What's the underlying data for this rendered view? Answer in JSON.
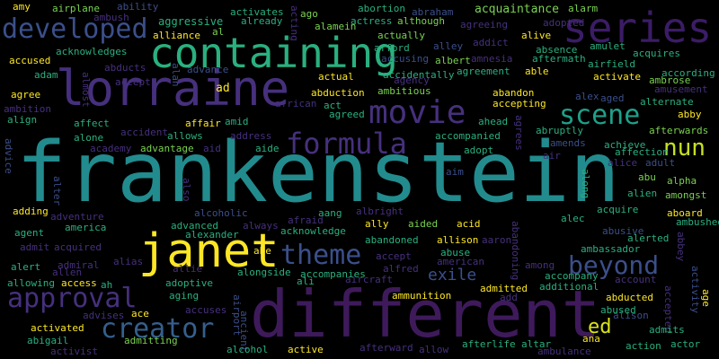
{
  "background": "#000000",
  "palette": {
    "purple": "#46307d",
    "indigo": "#3b4f8a",
    "teal": "#228b8d",
    "green": "#2ab07f",
    "lime": "#7ad151",
    "yellow": "#fde725",
    "slate": "#355f8d",
    "sea": "#1fa088"
  },
  "words": [
    {
      "text": "frankenstein",
      "color": "#228b8d"
    },
    {
      "text": "different",
      "color": "#3e1a5b"
    },
    {
      "text": "lorraine",
      "color": "#46307d"
    },
    {
      "text": "containing",
      "color": "#2ab07f"
    },
    {
      "text": "series",
      "color": "#3b1c66"
    },
    {
      "text": "janet",
      "color": "#fde725"
    },
    {
      "text": "developed",
      "color": "#3b4f8a"
    },
    {
      "text": "movie",
      "color": "#46307d"
    },
    {
      "text": "formula",
      "color": "#46307d"
    },
    {
      "text": "scene",
      "color": "#1fa088"
    },
    {
      "text": "beyond",
      "color": "#3b4f8a"
    },
    {
      "text": "approval",
      "color": "#46307d"
    },
    {
      "text": "theme",
      "color": "#3b4f8a"
    },
    {
      "text": "creator",
      "color": "#355f8d"
    },
    {
      "text": "nun",
      "color": "#c7e020"
    },
    {
      "text": "ed",
      "color": "#d8e219"
    },
    {
      "text": "exile",
      "color": "#3b4f8a"
    }
  ],
  "small_words": [
    "amy",
    "airplane",
    "ability",
    "activates",
    "acting",
    "ago",
    "abortion",
    "abraham",
    "acquaintance",
    "alarm",
    "ambush",
    "aggressive",
    "already",
    "alamein",
    "actress",
    "although",
    "adopted",
    "al",
    "agreeing",
    "alive",
    "alliance",
    "actually",
    "addict",
    "absence",
    "amulet",
    "acknowledges",
    "afford",
    "alley",
    "aftermath",
    "acquires",
    "accused",
    "abducts",
    "advance",
    "accusing",
    "albert",
    "amnesia",
    "airfield",
    "according",
    "adam",
    "almost",
    "accepts",
    "ad",
    "actual",
    "agency",
    "accidentally",
    "agreement",
    "able",
    "activate",
    "ambrose",
    "amusement",
    "alan",
    "abduction",
    "ambitious",
    "abandon",
    "alex",
    "aged",
    "agree",
    "ambition",
    "african",
    "act",
    "accepting",
    "alternate",
    "abby",
    "align",
    "affect",
    "affair",
    "amid",
    "agreed",
    "ahead",
    "agrees",
    "abruptly",
    "afterwards",
    "alone",
    "accident",
    "allows",
    "address",
    "accompanied",
    "amends",
    "achieve",
    "academy",
    "aide",
    "adopt",
    "affection",
    "alice",
    "adult",
    "advice",
    "advantage",
    "aid",
    "air",
    "abu",
    "alpha",
    "aim",
    "along",
    "alien",
    "amongst",
    "alter",
    "also",
    "aboard",
    "adding",
    "albright",
    "acid",
    "acquire",
    "ambushed",
    "adventure",
    "alcoholic",
    "aang",
    "ally",
    "aided",
    "alec",
    "abbey",
    "agent",
    "america",
    "advanced",
    "always",
    "afraid",
    "abusive",
    "alerted",
    "alexander",
    "acknowledge",
    "admit",
    "acquired",
    "abe",
    "abandoned",
    "allison",
    "aaron",
    "ambassador",
    "alias",
    "accept",
    "abuse",
    "abandoning",
    "alert",
    "admiral",
    "allie",
    "allen",
    "alongside",
    "accompanies",
    "alfred",
    "american",
    "among",
    "accompany",
    "activity",
    "allowing",
    "access",
    "ah",
    "adoptive",
    "ali",
    "aircraft",
    "account",
    "age",
    "aging",
    "admitted",
    "additional",
    "ace",
    "accuses",
    "ammunition",
    "add",
    "abducted",
    "accepted",
    "advises",
    "airport",
    "abused",
    "activated",
    "alison",
    "admits",
    "abigail",
    "admitting",
    "ancient",
    "ana",
    "actor",
    "activist",
    "alcohol",
    "active",
    "afterward",
    "allow",
    "afterlife",
    "altar",
    "ambulance",
    "action"
  ]
}
